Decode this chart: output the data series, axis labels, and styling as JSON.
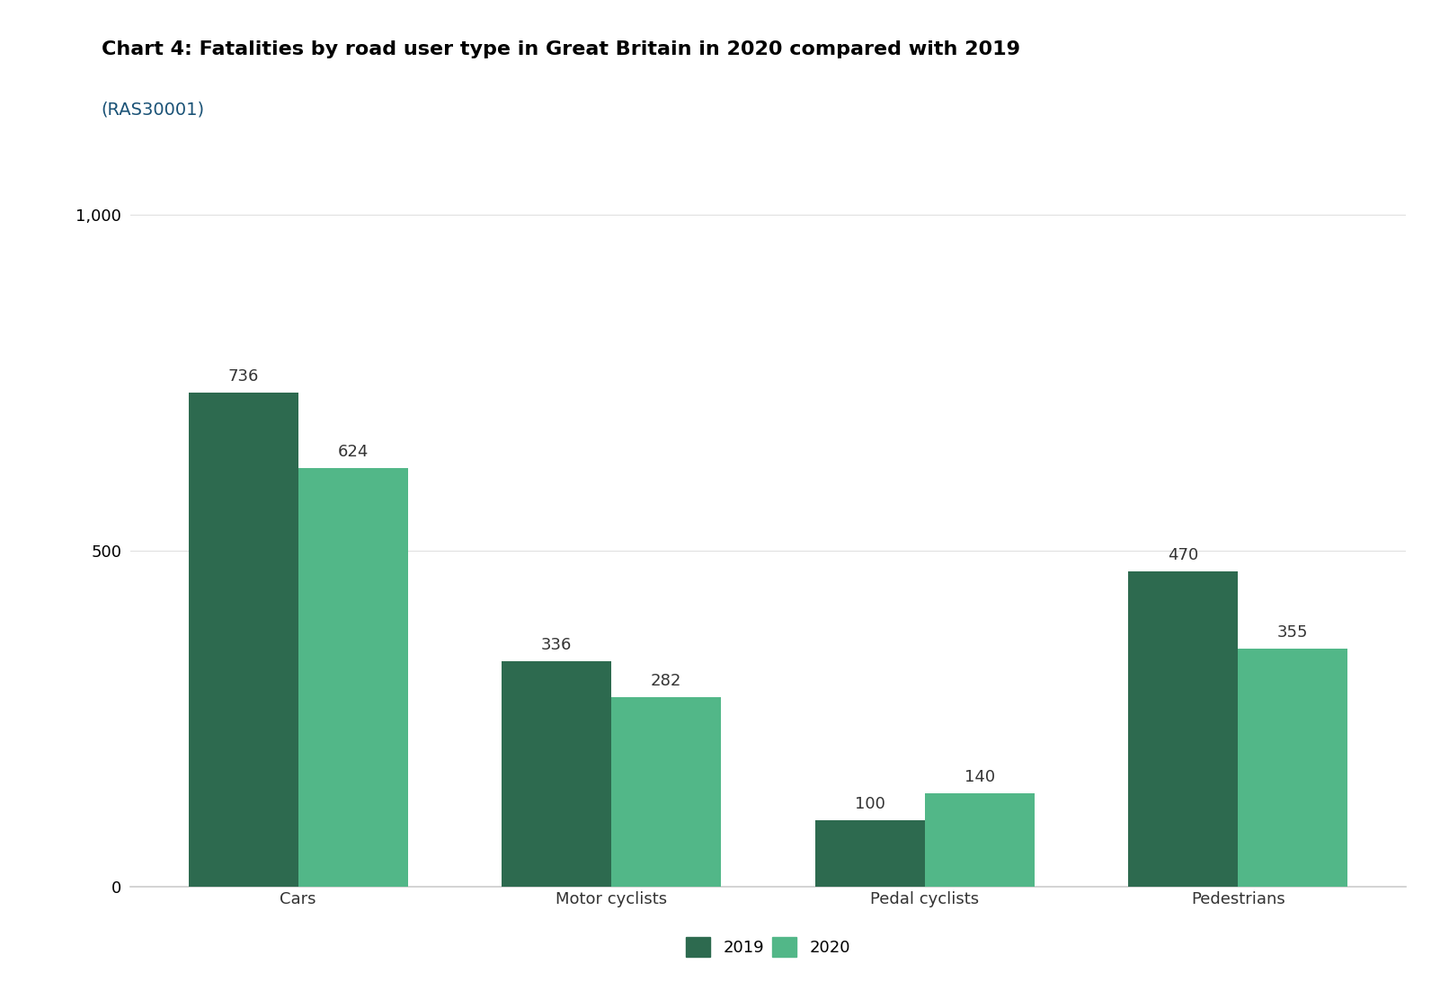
{
  "title": "Chart 4: Fatalities by road user type in Great Britain in 2020 compared with 2019",
  "subtitle": "(RAS30001)",
  "categories": [
    "Cars",
    "Motor cyclists",
    "Pedal cyclists",
    "Pedestrians"
  ],
  "values_2019": [
    736,
    336,
    100,
    470
  ],
  "values_2020": [
    624,
    282,
    140,
    355
  ],
  "color_2019": "#2d6a4f",
  "color_2020": "#52b788",
  "background_color": "#ffffff",
  "ylim": [
    0,
    1050
  ],
  "yticks": [
    0,
    500,
    1000
  ],
  "bar_width": 0.35,
  "legend_labels": [
    "2019",
    "2020"
  ],
  "title_fontsize": 16,
  "subtitle_fontsize": 14,
  "tick_fontsize": 13,
  "label_fontsize": 13,
  "annotation_fontsize": 13
}
